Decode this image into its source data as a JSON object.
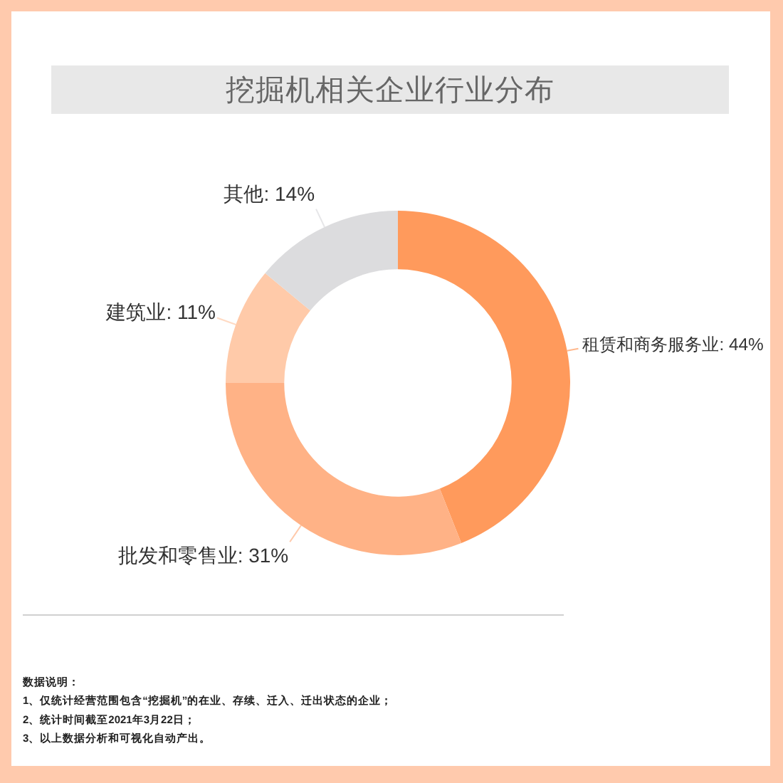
{
  "chart_data": {
    "type": "donut",
    "title": "挖掘机相关企业行业分布",
    "categories": [
      "租赁和商务服务业",
      "批发和零售业",
      "建筑业",
      "其他"
    ],
    "values": [
      44,
      31,
      11,
      14
    ],
    "colors": [
      "#ff9a5c",
      "#ffb286",
      "#ffcaa9",
      "#dcdcde"
    ],
    "value_labels": [
      "44%",
      "31%",
      "11%",
      "14%"
    ],
    "annotations": [
      "数据说明：",
      "1、仅统计经营范围包含“挖掘机”的在业、存续、迁入、迁出状态的企业；",
      "2、统计时间截至2021年3月22日；",
      "3、以上数据分析和可视化自动产出。"
    ]
  }
}
